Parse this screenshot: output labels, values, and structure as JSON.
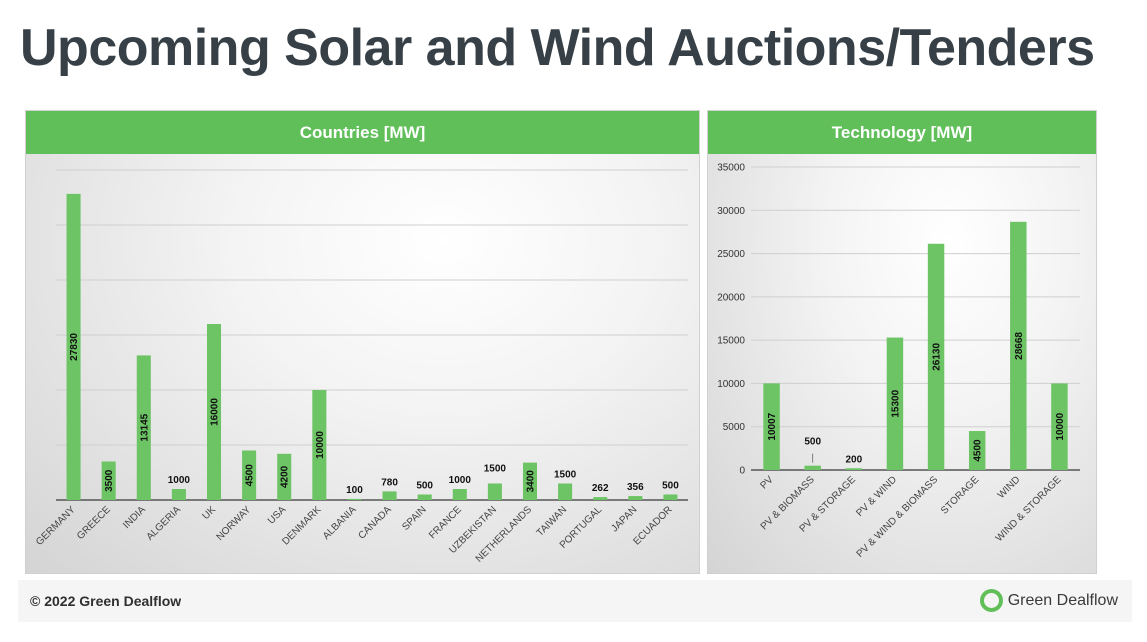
{
  "title": "Upcoming Solar and Wind Auctions/Tenders",
  "footer": {
    "copyright": "© 2022 Green Dealflow",
    "brand": "Green Dealflow"
  },
  "colors": {
    "bar": "#6cc464",
    "header": "#61bf5a",
    "title": "#364046"
  },
  "chart_data": [
    {
      "type": "bar",
      "title": "Countries [MW]",
      "categories": [
        "GERMANY",
        "GREECE",
        "INDIA",
        "ALGERIA",
        "UK",
        "NORWAY",
        "USA",
        "DENMARK",
        "ALBANIA",
        "CANADA",
        "SPAIN",
        "FRANCE",
        "UZBEKISTAN",
        "NETHERLANDS",
        "TAIWAN",
        "PORTUGAL",
        "JAPAN",
        "ECUADOR"
      ],
      "values": [
        27830,
        3500,
        13145,
        1000,
        16000,
        4500,
        4200,
        10000,
        100,
        780,
        500,
        1000,
        1500,
        3400,
        1500,
        262,
        356,
        500
      ],
      "ylim": [
        0,
        30000
      ],
      "xlabel": "",
      "ylabel": "",
      "grid": true
    },
    {
      "type": "bar",
      "title": "Technology [MW]",
      "categories": [
        "PV",
        "PV & BIOMASS",
        "PV & STORAGE",
        "PV & WIND",
        "PV & WIND & BIOMASS",
        "STORAGE",
        "WIND",
        "WIND & STORAGE"
      ],
      "values": [
        10007,
        500,
        200,
        15300,
        26130,
        4500,
        28668,
        10000
      ],
      "ylim": [
        0,
        35000
      ],
      "yticks": [
        0,
        5000,
        10000,
        15000,
        20000,
        25000,
        30000,
        35000
      ],
      "xlabel": "",
      "ylabel": "",
      "grid": true
    }
  ]
}
